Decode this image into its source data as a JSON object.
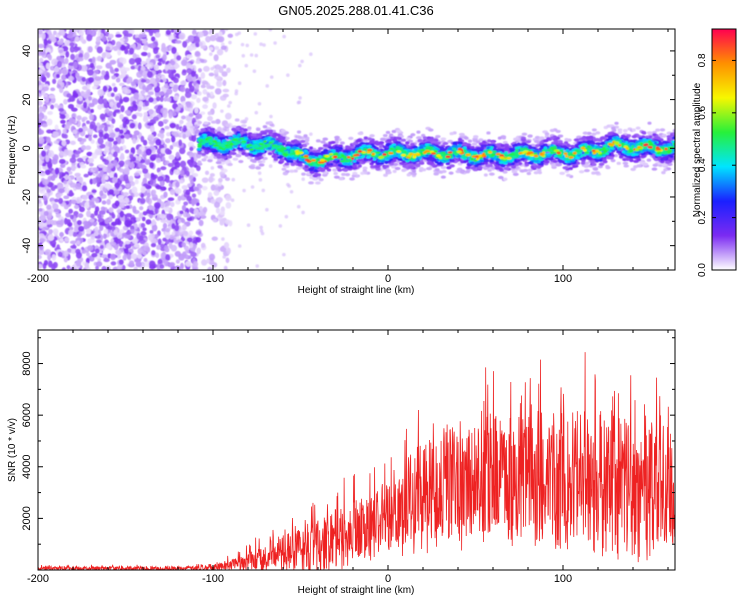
{
  "figure": {
    "title": "GN05.2025.288.01.41.C36"
  },
  "chart_data": [
    {
      "type": "heatmap",
      "title": "",
      "xlabel": "Height of straight line (km)",
      "ylabel": "Frequency (Hz)",
      "xlim": [
        -200,
        164
      ],
      "ylim": [
        -50,
        49
      ],
      "x_ticks": [
        -200,
        -100,
        0,
        100
      ],
      "x_tick_labels": [
        "-200",
        "-100",
        "0",
        "100"
      ],
      "y_ticks": [
        -40,
        -20,
        0,
        20,
        40
      ],
      "y_tick_labels": [
        "-40",
        "-20",
        "0",
        "20",
        "40"
      ],
      "grid": false,
      "description_noise_region_km": [
        -200,
        -108
      ],
      "signal_band_hz": [
        -5,
        5
      ],
      "signal_center_trend": [
        {
          "x": -100,
          "y": 2
        },
        {
          "x": -80,
          "y": 2
        },
        {
          "x": -60,
          "y": 0
        },
        {
          "x": -45,
          "y": -5
        },
        {
          "x": -30,
          "y": -4
        },
        {
          "x": -10,
          "y": -2
        },
        {
          "x": 0,
          "y": -2
        },
        {
          "x": 30,
          "y": -2
        },
        {
          "x": 60,
          "y": -3
        },
        {
          "x": 90,
          "y": -2
        },
        {
          "x": 110,
          "y": -2
        },
        {
          "x": 130,
          "y": 1
        },
        {
          "x": 160,
          "y": 0
        }
      ],
      "colorbar": {
        "label": "Normalized spectral amplitude",
        "range": [
          0,
          0.92
        ],
        "ticks": [
          0.0,
          0.2,
          0.4,
          0.6,
          0.8
        ],
        "tick_labels": [
          "0.0",
          "0.2",
          "0.4",
          "0.6",
          "0.8"
        ],
        "colors": [
          "#ffffff",
          "#7b2bf2",
          "#1a20ff",
          "#00e5ff",
          "#27f03a",
          "#f7f700",
          "#ff9000",
          "#ff0050"
        ]
      }
    },
    {
      "type": "line",
      "title": "",
      "xlabel": "Height of straight line (km)",
      "ylabel": "SNR (10 * v/v)",
      "xlim": [
        -200,
        164
      ],
      "ylim": [
        0,
        9300
      ],
      "x_ticks": [
        -200,
        -100,
        0,
        100
      ],
      "x_tick_labels": [
        "-200",
        "-100",
        "0",
        "100"
      ],
      "y_ticks": [
        2000,
        4000,
        6000,
        8000
      ],
      "y_tick_labels": [
        "2000",
        "4000",
        "6000",
        "8000"
      ],
      "grid": false,
      "series": [
        {
          "name": "SNR",
          "color": "#ee2222",
          "envelope": [
            {
              "x": -200,
              "base": 60,
              "amp": 140
            },
            {
              "x": -110,
              "base": 60,
              "amp": 160
            },
            {
              "x": -95,
              "base": 150,
              "amp": 300
            },
            {
              "x": -80,
              "base": 350,
              "amp": 650
            },
            {
              "x": -70,
              "base": 600,
              "amp": 1200
            },
            {
              "x": -55,
              "base": 700,
              "amp": 1500
            },
            {
              "x": -40,
              "base": 900,
              "amp": 1900
            },
            {
              "x": -25,
              "base": 1300,
              "amp": 2300
            },
            {
              "x": -10,
              "base": 1700,
              "amp": 2300
            },
            {
              "x": 0,
              "base": 2100,
              "amp": 2500
            },
            {
              "x": 15,
              "base": 2900,
              "amp": 3200
            },
            {
              "x": 30,
              "base": 3400,
              "amp": 4000
            },
            {
              "x": 50,
              "base": 3700,
              "amp": 4200
            },
            {
              "x": 70,
              "base": 3700,
              "amp": 4200
            },
            {
              "x": 100,
              "base": 3500,
              "amp": 5100
            },
            {
              "x": 120,
              "base": 3300,
              "amp": 5300
            },
            {
              "x": 140,
              "base": 3000,
              "amp": 5000
            },
            {
              "x": 164,
              "base": 3100,
              "amp": 4800
            }
          ]
        }
      ]
    }
  ]
}
